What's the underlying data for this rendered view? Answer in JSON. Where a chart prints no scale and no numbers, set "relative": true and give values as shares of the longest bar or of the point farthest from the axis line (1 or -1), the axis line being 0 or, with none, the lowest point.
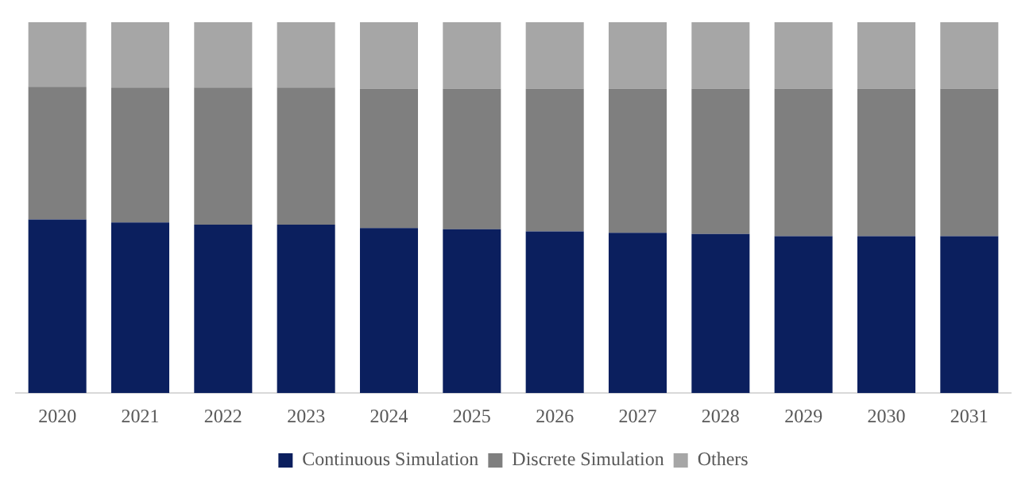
{
  "chart_data": {
    "type": "bar",
    "stacked": true,
    "relative": true,
    "legend": "bottom",
    "grid": false,
    "categories": [
      "2020",
      "2021",
      "2022",
      "2023",
      "2024",
      "2025",
      "2026",
      "2027",
      "2028",
      "2029",
      "2030",
      "2031"
    ],
    "series": [
      {
        "name": "Continuous Simulation",
        "color": "#0b1f5e",
        "values": [
          0.468,
          0.46,
          0.454,
          0.454,
          0.445,
          0.442,
          0.436,
          0.432,
          0.429,
          0.423,
          0.423,
          0.423
        ]
      },
      {
        "name": "Discrete Simulation",
        "color": "#7f7f7f",
        "values": [
          0.358,
          0.364,
          0.37,
          0.37,
          0.376,
          0.379,
          0.385,
          0.389,
          0.392,
          0.398,
          0.398,
          0.398
        ]
      },
      {
        "name": "Others",
        "color": "#a6a6a6",
        "values": [
          0.174,
          0.176,
          0.176,
          0.176,
          0.179,
          0.179,
          0.179,
          0.179,
          0.179,
          0.179,
          0.179,
          0.179
        ]
      }
    ]
  }
}
